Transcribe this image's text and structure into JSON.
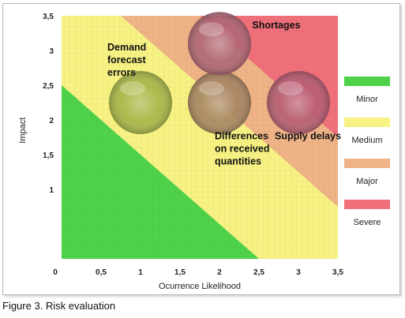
{
  "caption": "Figure 3. Risk evaluation",
  "chart_data": {
    "type": "scatter",
    "title": "",
    "xlabel": "Ocurrence Likelihood",
    "ylabel": "Impact",
    "xlim": [
      0,
      3.5
    ],
    "ylim": [
      0,
      3.5
    ],
    "x_ticks": [
      {
        "v": 0,
        "label": "0"
      },
      {
        "v": 0.5,
        "label": "0,5"
      },
      {
        "v": 1,
        "label": "1"
      },
      {
        "v": 1.5,
        "label": "1,5"
      },
      {
        "v": 2,
        "label": "2"
      },
      {
        "v": 2.5,
        "label": "2,5"
      },
      {
        "v": 3,
        "label": "3"
      },
      {
        "v": 3.5,
        "label": "3,5"
      }
    ],
    "y_ticks": [
      {
        "v": 1,
        "label": "1"
      },
      {
        "v": 1.5,
        "label": "1,5"
      },
      {
        "v": 2,
        "label": "2"
      },
      {
        "v": 2.5,
        "label": "2,5"
      },
      {
        "v": 3,
        "label": "3"
      },
      {
        "v": 3.5,
        "label": "3,5"
      }
    ],
    "grid": true,
    "legend_position": "right",
    "zones": [
      {
        "name": "Minor",
        "color": "#4fd24a"
      },
      {
        "name": "Medium",
        "color": "#f7f283"
      },
      {
        "name": "Major",
        "color": "#efb386"
      },
      {
        "name": "Severe",
        "color": "#f0707a"
      }
    ],
    "zone_boundaries": [
      2.5,
      4.25,
      5.25
    ],
    "points": [
      {
        "name": "Demand forecast errors",
        "label_lines": [
          "Demand",
          "forecast",
          "errors"
        ],
        "x": 1,
        "y": 2.25,
        "color": "#9fae3a"
      },
      {
        "name": "Differences on received quantities",
        "label_lines": [
          "Differences",
          "on received",
          "quantities"
        ],
        "x": 2,
        "y": 2.25,
        "color": "#9e7a55"
      },
      {
        "name": "Shortages",
        "label_lines": [
          "Shortages"
        ],
        "x": 2,
        "y": 3.1,
        "color": "#a85a6b"
      },
      {
        "name": "Supply delays",
        "label_lines": [
          "Supply delays"
        ],
        "x": 3,
        "y": 2.25,
        "color": "#b0506a"
      }
    ]
  }
}
